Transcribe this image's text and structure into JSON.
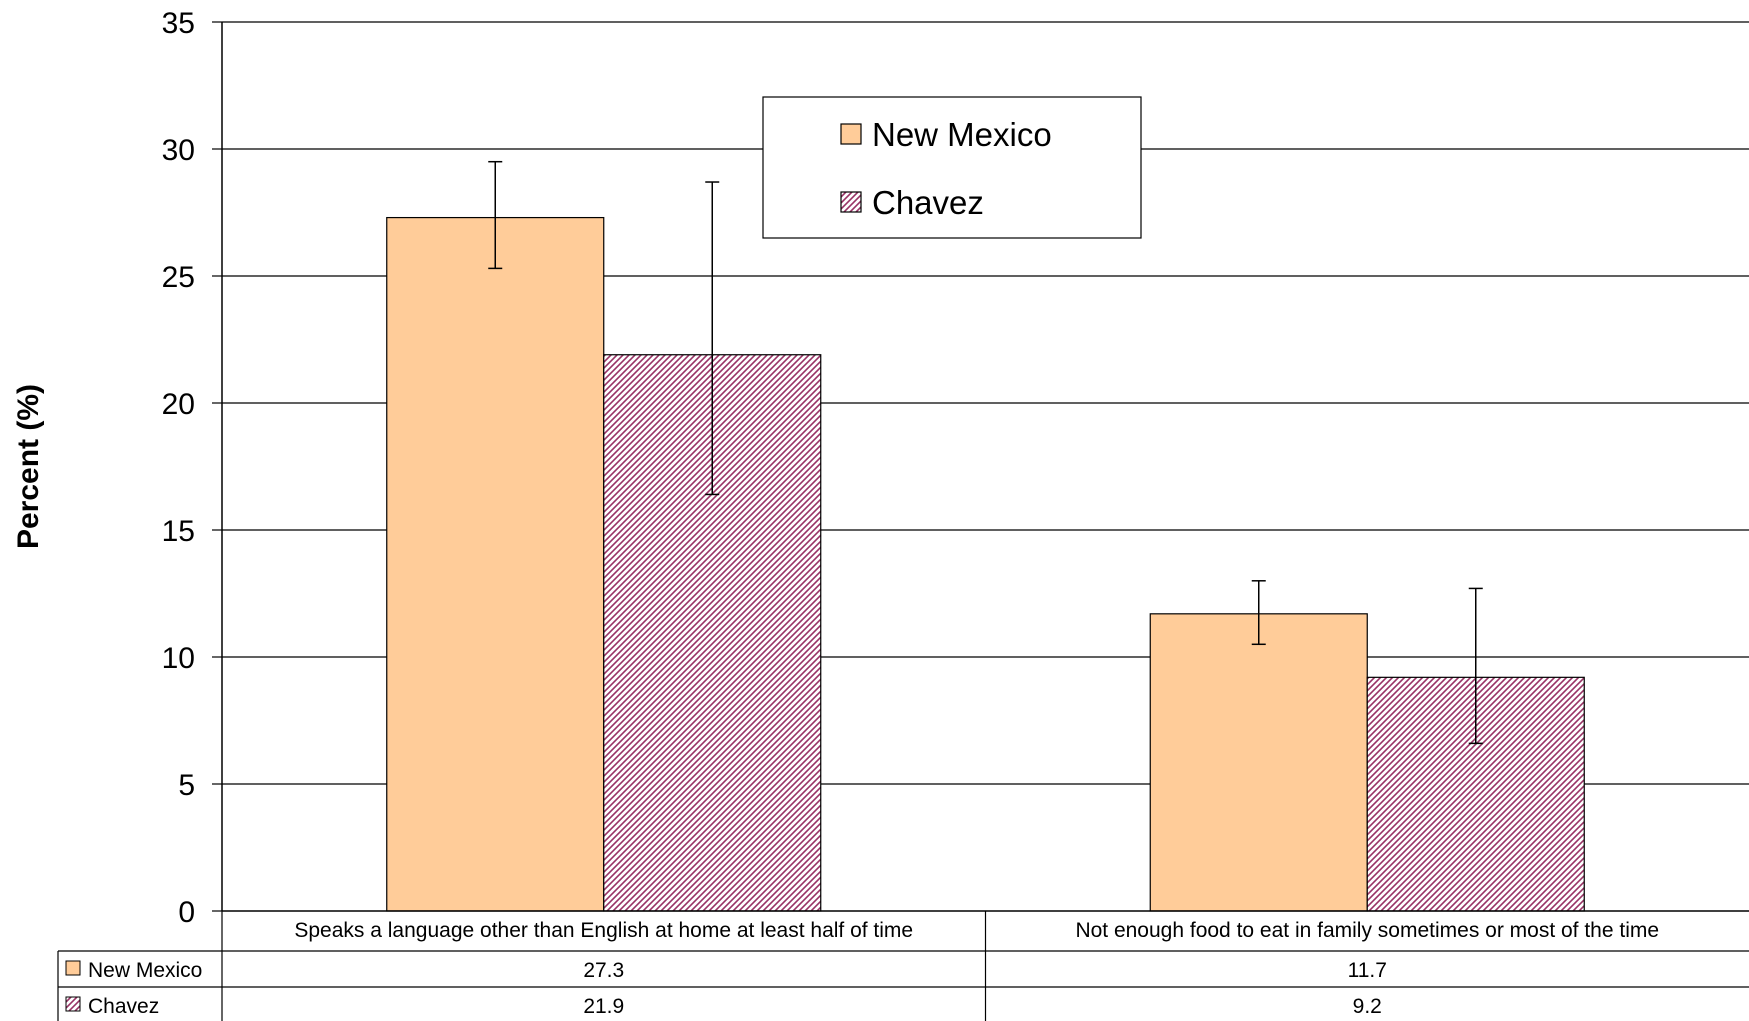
{
  "chart_data": {
    "type": "bar",
    "ylabel": "Percent (%)",
    "ylim": [
      0,
      35
    ],
    "yticks": [
      0,
      5,
      10,
      15,
      20,
      25,
      30,
      35
    ],
    "grid": true,
    "legend_position": "top-center",
    "categories": [
      "Speaks a language other than English at home at least half of time",
      "Not enough food to eat in family sometimes or most of the time"
    ],
    "series": [
      {
        "name": "New Mexico",
        "values": [
          27.3,
          11.7
        ],
        "error_low": [
          25.3,
          10.5
        ],
        "error_high": [
          29.5,
          13.0
        ],
        "color": "#FFCC99",
        "pattern": "solid"
      },
      {
        "name": "Chavez",
        "values": [
          21.9,
          9.2
        ],
        "error_low": [
          16.4,
          6.6
        ],
        "error_high": [
          28.7,
          12.7
        ],
        "color": "#993366",
        "pattern": "diagonal-stripes"
      }
    ],
    "data_table": {
      "rows": [
        {
          "series": "New Mexico",
          "cells": [
            "27.3",
            "11.7"
          ]
        },
        {
          "series": "Chavez",
          "cells": [
            "21.9",
            "9.2"
          ]
        }
      ]
    }
  }
}
